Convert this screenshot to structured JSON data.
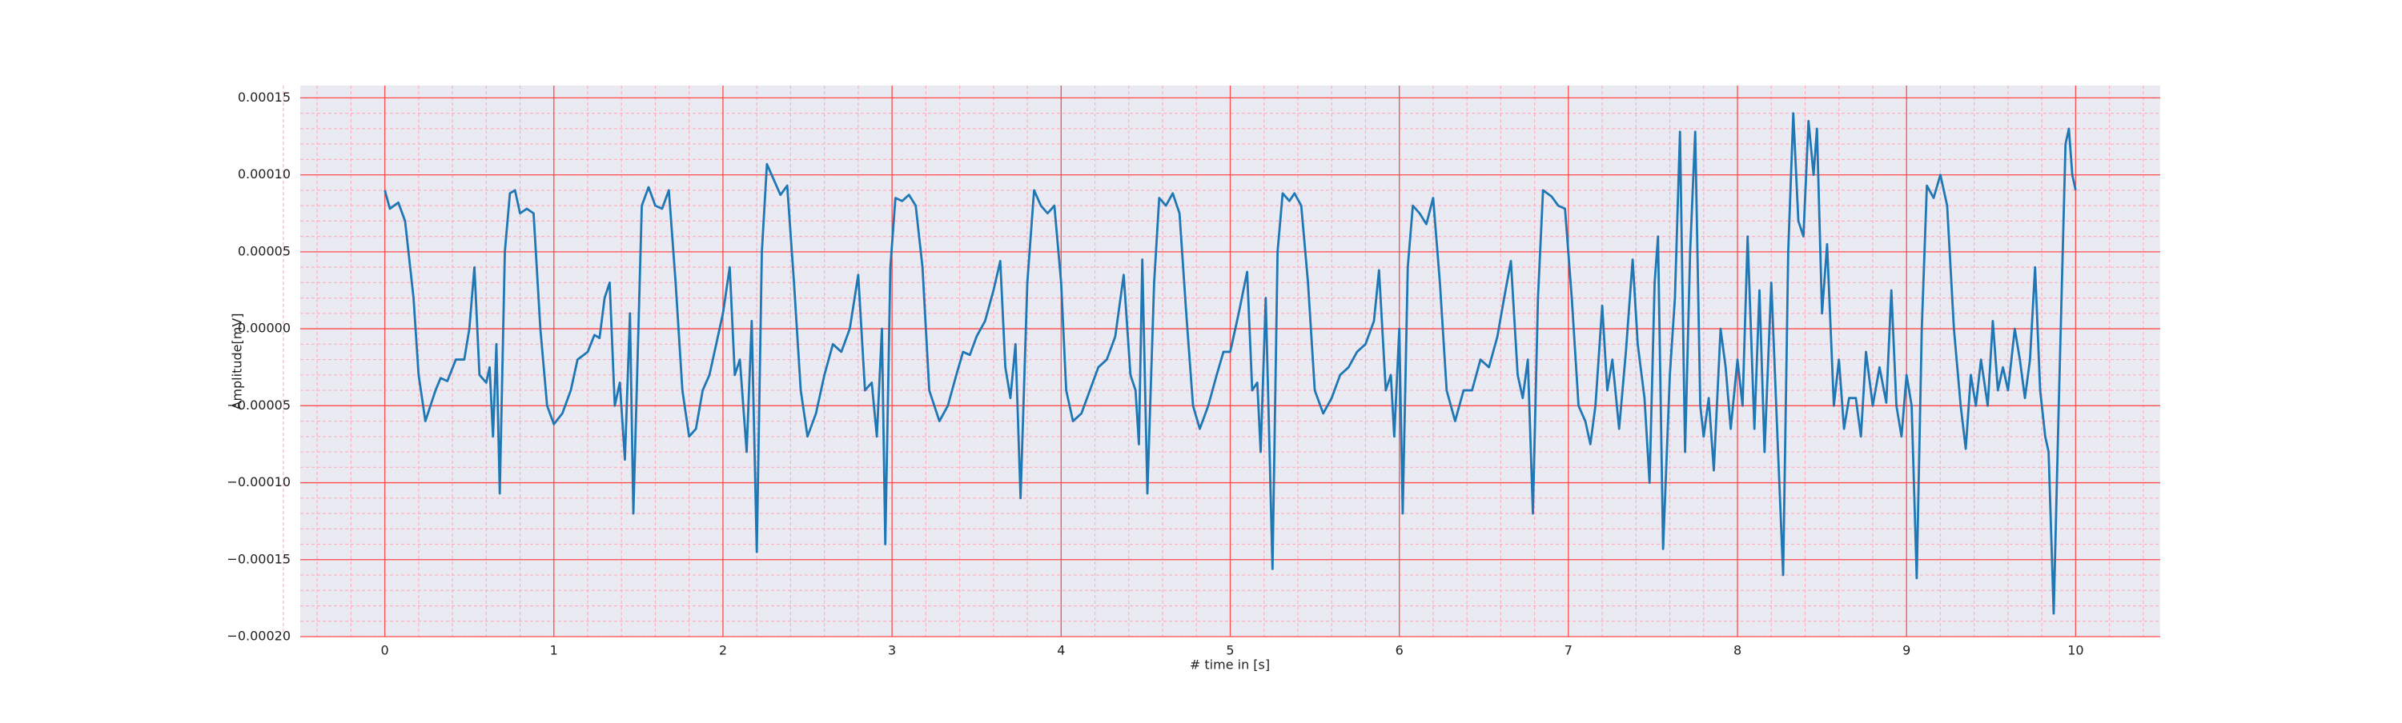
{
  "chart_data": {
    "type": "line",
    "xlabel": "# time in [s]",
    "ylabel": "Amplitude[mV]",
    "xlim": [
      -0.5,
      10.5
    ],
    "ylim": [
      -0.0002,
      0.000158
    ],
    "xticks": [
      0,
      1,
      2,
      3,
      4,
      5,
      6,
      7,
      8,
      9,
      10
    ],
    "yticks": [
      {
        "value": -0.0002,
        "label": "−0.00020"
      },
      {
        "value": -0.00015,
        "label": "−0.00015"
      },
      {
        "value": -0.0001,
        "label": "−0.00010"
      },
      {
        "value": -5e-05,
        "label": "−0.00005"
      },
      {
        "value": 0,
        "label": "0.00000"
      },
      {
        "value": 5e-05,
        "label": "0.00005"
      },
      {
        "value": 0.0001,
        "label": "0.00010"
      },
      {
        "value": 0.00015,
        "label": "0.00015"
      }
    ],
    "grid": true,
    "minor_grid": true,
    "grid_color": "#ff4d4d",
    "minor_grid_color": "#ffb0c0",
    "background": "#eaeaf2",
    "x": [
      0,
      0.03,
      0.08,
      0.12,
      0.17,
      0.2,
      0.24,
      0.3,
      0.33,
      0.37,
      0.42,
      0.47,
      0.5,
      0.53,
      0.56,
      0.6,
      0.62,
      0.64,
      0.66,
      0.68,
      0.71,
      0.74,
      0.77,
      0.8,
      0.84,
      0.88,
      0.92,
      0.96,
      1.0,
      1.05,
      1.1,
      1.14,
      1.2,
      1.24,
      1.27,
      1.3,
      1.33,
      1.36,
      1.39,
      1.42,
      1.45,
      1.47,
      1.5,
      1.52,
      1.56,
      1.6,
      1.64,
      1.68,
      1.72,
      1.76,
      1.8,
      1.84,
      1.88,
      1.92,
      1.96,
      2.0,
      2.04,
      2.07,
      2.1,
      2.14,
      2.17,
      2.2,
      2.23,
      2.26,
      2.3,
      2.34,
      2.38,
      2.42,
      2.46,
      2.5,
      2.55,
      2.6,
      2.65,
      2.7,
      2.75,
      2.8,
      2.84,
      2.88,
      2.91,
      2.94,
      2.96,
      2.99,
      3.02,
      3.06,
      3.1,
      3.14,
      3.18,
      3.22,
      3.28,
      3.33,
      3.38,
      3.42,
      3.46,
      3.5,
      3.55,
      3.6,
      3.64,
      3.67,
      3.7,
      3.73,
      3.76,
      3.8,
      3.84,
      3.88,
      3.92,
      3.96,
      4.0,
      4.03,
      4.07,
      4.12,
      4.17,
      4.22,
      4.27,
      4.32,
      4.37,
      4.41,
      4.44,
      4.46,
      4.48,
      4.51,
      4.55,
      4.58,
      4.62,
      4.66,
      4.7,
      4.74,
      4.78,
      4.82,
      4.87,
      4.92,
      4.96,
      5.0,
      5.05,
      5.1,
      5.13,
      5.16,
      5.18,
      5.21,
      5.25,
      5.28,
      5.31,
      5.35,
      5.38,
      5.42,
      5.46,
      5.5,
      5.55,
      5.6,
      5.65,
      5.7,
      5.75,
      5.8,
      5.85,
      5.88,
      5.92,
      5.95,
      5.97,
      6.0,
      6.02,
      6.05,
      6.08,
      6.12,
      6.16,
      6.2,
      6.24,
      6.28,
      6.33,
      6.38,
      6.43,
      6.48,
      6.53,
      6.58,
      6.62,
      6.66,
      6.7,
      6.73,
      6.76,
      6.79,
      6.82,
      6.85,
      6.9,
      6.94,
      6.98,
      7.02,
      7.06,
      7.1,
      7.13,
      7.16,
      7.2,
      7.23,
      7.26,
      7.3,
      7.34,
      7.38,
      7.41,
      7.45,
      7.48,
      7.51,
      7.53,
      7.56,
      7.6,
      7.63,
      7.66,
      7.69,
      7.72,
      7.75,
      7.78,
      7.8,
      7.83,
      7.86,
      7.9,
      7.93,
      7.96,
      8.0,
      8.03,
      8.06,
      8.1,
      8.13,
      8.16,
      8.2,
      8.24,
      8.27,
      8.3,
      8.33,
      8.36,
      8.39,
      8.42,
      8.45,
      8.47,
      8.5,
      8.53,
      8.57,
      8.6,
      8.63,
      8.66,
      8.7,
      8.73,
      8.76,
      8.8,
      8.84,
      8.88,
      8.91,
      8.94,
      8.97,
      9.0,
      9.03,
      9.06,
      9.09,
      9.12,
      9.16,
      9.2,
      9.24,
      9.28,
      9.32,
      9.35,
      9.38,
      9.41,
      9.44,
      9.48,
      9.51,
      9.54,
      9.57,
      9.6,
      9.64,
      9.67,
      9.7,
      9.73,
      9.76,
      9.79,
      9.82,
      9.84,
      9.87,
      9.9,
      9.94,
      9.96,
      9.98,
      10.0
    ],
    "series": [
      {
        "color": "#1f77b4",
        "values": [
          9e-05,
          7.8e-05,
          8.2e-05,
          7e-05,
          2e-05,
          -3e-05,
          -6e-05,
          -4e-05,
          -3.2e-05,
          -3.4e-05,
          -2e-05,
          -2e-05,
          0,
          4e-05,
          -3e-05,
          -3.5e-05,
          -2.5e-05,
          -7e-05,
          -1e-05,
          -0.000107,
          5e-05,
          8.8e-05,
          9e-05,
          7.5e-05,
          7.8e-05,
          7.5e-05,
          0,
          -5e-05,
          -6.2e-05,
          -5.5e-05,
          -4e-05,
          -2e-05,
          -1.5e-05,
          -4e-06,
          -6e-06,
          2e-05,
          3e-05,
          -5e-05,
          -3.5e-05,
          -8.5e-05,
          1e-05,
          -0.00012,
          0,
          8e-05,
          9.2e-05,
          8e-05,
          7.8e-05,
          9e-05,
          3e-05,
          -4e-05,
          -7e-05,
          -6.5e-05,
          -4e-05,
          -3e-05,
          -1e-05,
          1e-05,
          4e-05,
          -3e-05,
          -2e-05,
          -8e-05,
          5e-06,
          -0.000145,
          5e-05,
          0.000107,
          9.7e-05,
          8.7e-05,
          9.3e-05,
          3e-05,
          -4e-05,
          -7e-05,
          -5.5e-05,
          -3e-05,
          -1e-05,
          -1.5e-05,
          0,
          3.5e-05,
          -4e-05,
          -3.5e-05,
          -7e-05,
          0,
          -0.00014,
          4e-05,
          8.5e-05,
          8.3e-05,
          8.7e-05,
          8e-05,
          4e-05,
          -4e-05,
          -6e-05,
          -5e-05,
          -3e-05,
          -1.5e-05,
          -1.7e-05,
          -5e-06,
          5e-06,
          2.5e-05,
          4.4e-05,
          -2.5e-05,
          -4.5e-05,
          -1e-05,
          -0.00011,
          3e-05,
          9e-05,
          8e-05,
          7.5e-05,
          8e-05,
          3e-05,
          -4e-05,
          -6e-05,
          -5.5e-05,
          -4e-05,
          -2.5e-05,
          -2e-05,
          -5e-06,
          3.5e-05,
          -3e-05,
          -4e-05,
          -7.5e-05,
          4.5e-05,
          -0.000107,
          3e-05,
          8.5e-05,
          8e-05,
          8.8e-05,
          7.5e-05,
          1e-05,
          -5e-05,
          -6.5e-05,
          -5e-05,
          -3e-05,
          -1.5e-05,
          -1.5e-05,
          1e-05,
          3.7e-05,
          -4e-05,
          -3.5e-05,
          -8e-05,
          2e-05,
          -0.000156,
          5e-05,
          8.8e-05,
          8.3e-05,
          8.8e-05,
          8e-05,
          3e-05,
          -4e-05,
          -5.5e-05,
          -4.5e-05,
          -3e-05,
          -2.5e-05,
          -1.5e-05,
          -1e-05,
          5e-06,
          3.8e-05,
          -4e-05,
          -3e-05,
          -7e-05,
          0,
          -0.00012,
          4e-05,
          8e-05,
          7.5e-05,
          6.8e-05,
          8.5e-05,
          3e-05,
          -4e-05,
          -6e-05,
          -4e-05,
          -4e-05,
          -2e-05,
          -2.5e-05,
          -5e-06,
          2e-05,
          4.4e-05,
          -3e-05,
          -4.5e-05,
          -2e-05,
          -0.00012,
          2e-05,
          9e-05,
          8.6e-05,
          8e-05,
          7.8e-05,
          2e-05,
          -5e-05,
          -6e-05,
          -7.5e-05,
          -5e-05,
          1.5e-05,
          -4e-05,
          -2e-05,
          -6.5e-05,
          -1.5e-05,
          4.5e-05,
          -1e-05,
          -4.5e-05,
          -0.0001,
          3e-05,
          6e-05,
          -0.000143,
          -3e-05,
          2e-05,
          0.000128,
          -8e-05,
          5e-05,
          0.000128,
          -5e-05,
          -7e-05,
          -4.5e-05,
          -9.2e-05,
          0,
          -2.5e-05,
          -6.5e-05,
          -2e-05,
          -5e-05,
          6e-05,
          -6.5e-05,
          2.5e-05,
          -8e-05,
          3e-05,
          -8e-05,
          -0.00016,
          5e-05,
          0.00014,
          7e-05,
          6e-05,
          0.000135,
          0.0001,
          0.00013,
          1e-05,
          5.5e-05,
          -5e-05,
          -2e-05,
          -6.5e-05,
          -4.5e-05,
          -4.5e-05,
          -7e-05,
          -1.5e-05,
          -5e-05,
          -2.5e-05,
          -4.8e-05,
          2.5e-05,
          -5e-05,
          -7e-05,
          -3e-05,
          -5e-05,
          -0.000162,
          0,
          9.3e-05,
          8.5e-05,
          0.0001,
          8e-05,
          0,
          -5e-05,
          -7.8e-05,
          -3e-05,
          -5e-05,
          -2e-05,
          -5e-05,
          5e-06,
          -4e-05,
          -2.5e-05,
          -4e-05,
          0,
          -2e-05,
          -4.5e-05,
          -2e-05,
          4e-05,
          -4e-05,
          -7e-05,
          -8e-05,
          -0.000185,
          -5e-05,
          0.00012,
          0.00013,
          0.0001,
          9e-05
        ]
      }
    ]
  }
}
